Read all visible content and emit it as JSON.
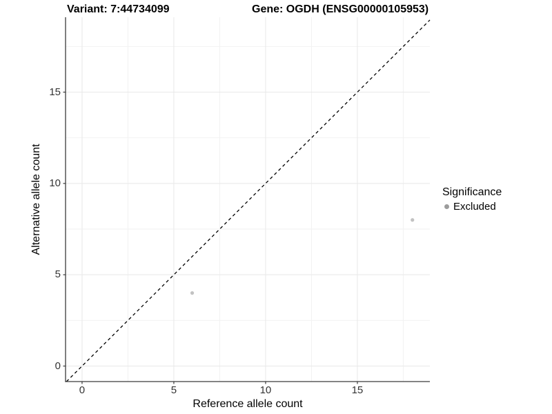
{
  "chart_data": {
    "type": "scatter",
    "titles": {
      "left": "Variant: 7:44734099",
      "right": "Gene: OGDH (ENSG00000105953)"
    },
    "xlabel": "Reference allele count",
    "ylabel": "Alternative allele count",
    "xlim": [
      -0.9,
      18.95
    ],
    "ylim": [
      -0.85,
      19.1
    ],
    "x_major_ticks": [
      0,
      5,
      10,
      15
    ],
    "x_minor_ticks": [
      2.5,
      7.5,
      12.5,
      17.5
    ],
    "y_major_ticks": [
      0,
      5,
      10,
      15
    ],
    "y_minor_ticks": [
      2.5,
      7.5,
      12.5,
      17.5
    ],
    "grid": true,
    "points": [
      {
        "x": 6,
        "y": 4,
        "series": "Excluded"
      },
      {
        "x": 18,
        "y": 8,
        "series": "Excluded"
      }
    ],
    "identity_line": {
      "slope": 1,
      "intercept": 0,
      "style": "dashed",
      "color": "#000000"
    },
    "legend": {
      "position": "right",
      "title": "Significance",
      "entries": [
        {
          "label": "Excluded",
          "color": "#9c9c9c"
        }
      ]
    },
    "colors": {
      "point_fill": "#c2c2c2",
      "grid_major": "#e8e8e8",
      "grid_minor": "#f2f2f2",
      "axis_line": "#3a3a3a",
      "tick_label": "#333333"
    }
  }
}
